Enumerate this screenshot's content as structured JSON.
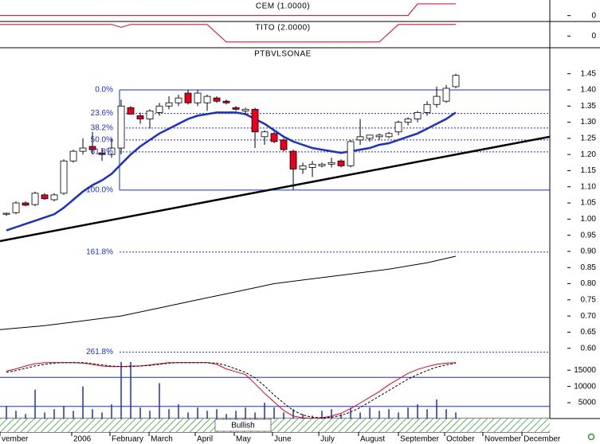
{
  "chart_data": [
    {
      "type": "candlestick",
      "title": "PTBVLSONAE",
      "signal_label": "Bullish",
      "up_color": "#ffffff",
      "down_color": "#e8001c",
      "x": [
        0,
        1,
        2,
        3,
        4,
        5,
        6,
        7,
        8,
        9,
        10,
        11,
        12,
        13,
        14,
        15,
        16,
        17,
        18,
        19,
        20,
        21,
        22,
        23,
        24,
        25,
        26,
        27,
        28,
        29,
        30,
        31,
        32,
        33,
        34,
        35,
        36,
        37,
        38,
        39,
        40,
        41,
        42,
        43,
        44,
        45,
        46,
        47
      ],
      "open": [
        1.015,
        1.02,
        1.05,
        1.045,
        1.075,
        1.06,
        1.08,
        1.18,
        1.21,
        1.225,
        1.205,
        1.2,
        1.22,
        1.345,
        1.32,
        1.31,
        1.33,
        1.35,
        1.36,
        1.39,
        1.36,
        1.36,
        1.375,
        1.365,
        1.345,
        1.335,
        1.34,
        1.255,
        1.265,
        1.245,
        1.21,
        1.155,
        1.16,
        1.165,
        1.17,
        1.18,
        1.165,
        1.245,
        1.25,
        1.255,
        1.255,
        1.27,
        1.3,
        1.31,
        1.33,
        1.355,
        1.365,
        1.41
      ],
      "high": [
        1.02,
        1.055,
        1.055,
        1.085,
        1.08,
        1.08,
        1.185,
        1.215,
        1.25,
        1.27,
        1.22,
        1.25,
        1.37,
        1.35,
        1.33,
        1.34,
        1.36,
        1.38,
        1.385,
        1.4,
        1.4,
        1.385,
        1.38,
        1.37,
        1.35,
        1.345,
        1.345,
        1.275,
        1.27,
        1.25,
        1.215,
        1.175,
        1.18,
        1.175,
        1.19,
        1.185,
        1.245,
        1.31,
        1.26,
        1.265,
        1.27,
        1.305,
        1.315,
        1.335,
        1.365,
        1.41,
        1.415,
        1.45
      ],
      "low": [
        1.01,
        1.015,
        1.04,
        1.04,
        1.06,
        1.055,
        1.075,
        1.175,
        1.2,
        1.2,
        1.18,
        1.19,
        1.2,
        1.325,
        1.295,
        1.28,
        1.32,
        1.34,
        1.35,
        1.355,
        1.35,
        1.335,
        1.36,
        1.355,
        1.335,
        1.325,
        1.22,
        1.23,
        1.235,
        1.21,
        1.09,
        1.14,
        1.13,
        1.16,
        1.16,
        1.16,
        1.16,
        1.23,
        1.24,
        1.245,
        1.25,
        1.26,
        1.29,
        1.3,
        1.32,
        1.345,
        1.36,
        1.405
      ],
      "close": [
        1.018,
        1.05,
        1.043,
        1.08,
        1.063,
        1.075,
        1.18,
        1.21,
        1.22,
        1.215,
        1.2,
        1.22,
        1.35,
        1.325,
        1.31,
        1.335,
        1.35,
        1.36,
        1.375,
        1.36,
        1.39,
        1.38,
        1.365,
        1.36,
        1.34,
        1.34,
        1.27,
        1.27,
        1.24,
        1.215,
        1.155,
        1.165,
        1.17,
        1.17,
        1.175,
        1.165,
        1.24,
        1.255,
        1.26,
        1.26,
        1.265,
        1.3,
        1.31,
        1.33,
        1.355,
        1.38,
        1.405,
        1.445
      ],
      "xlim": [
        -0.67,
        56.83
      ],
      "xticks": [
        {
          "value": -0.67,
          "label": "vember"
        },
        {
          "value": 6.83,
          "label": "2006"
        },
        {
          "value": 10.83,
          "label": "February"
        },
        {
          "value": 14.92,
          "label": "March"
        },
        {
          "value": 19.75,
          "label": "April"
        },
        {
          "value": 23.83,
          "label": "May"
        },
        {
          "value": 27.83,
          "label": "June"
        },
        {
          "value": 32.67,
          "label": "July"
        },
        {
          "value": 36.83,
          "label": "August"
        },
        {
          "value": 41,
          "label": "September"
        },
        {
          "value": 45.83,
          "label": "October"
        },
        {
          "value": 49.83,
          "label": "November"
        },
        {
          "value": 53.92,
          "label": "December"
        }
      ],
      "ylim": [
        0.385,
        1.5305
      ],
      "yticks": [
        1.45,
        {
          "value": 1.4,
          "label": "1.40"
        },
        1.35,
        {
          "value": 1.3,
          "label": "1.30"
        },
        1.25,
        {
          "value": 1.2,
          "label": "1.20"
        },
        1.15,
        {
          "value": 1.1,
          "label": "1.10"
        },
        1.05,
        {
          "value": 1,
          "label": "1.00"
        },
        0.95,
        {
          "value": 0.9,
          "label": "0.90"
        },
        0.85,
        {
          "value": 0.8,
          "label": "0.80"
        },
        0.75,
        {
          "value": 0.7,
          "label": "0.70"
        },
        0.65,
        {
          "value": 0.6,
          "label": "0.60"
        }
      ],
      "overlays": [
        {
          "color": "#1a2fd0",
          "width": 2.5,
          "x": [
            0,
            1,
            2,
            3,
            4,
            5,
            6,
            7,
            8,
            9,
            10,
            11,
            12,
            13,
            14,
            15,
            16,
            17,
            18,
            19,
            20,
            21,
            22,
            23,
            24,
            25,
            26,
            27,
            28,
            29,
            30,
            31,
            32,
            33,
            34,
            35,
            36,
            37,
            38,
            39,
            40,
            41,
            42,
            43,
            44,
            45,
            46,
            47
          ],
          "values": [
            0.965,
            0.975,
            0.985,
            0.995,
            1.005,
            1.015,
            1.035,
            1.06,
            1.085,
            1.105,
            1.12,
            1.14,
            1.17,
            1.2,
            1.225,
            1.245,
            1.265,
            1.28,
            1.295,
            1.31,
            1.32,
            1.325,
            1.33,
            1.33,
            1.33,
            1.325,
            1.31,
            1.295,
            1.275,
            1.255,
            1.24,
            1.23,
            1.22,
            1.215,
            1.21,
            1.205,
            1.21,
            1.215,
            1.22,
            1.23,
            1.235,
            1.245,
            1.255,
            1.265,
            1.28,
            1.295,
            1.31,
            1.33
          ]
        },
        {
          "color": "#000000",
          "width": 1,
          "x": [
            -0.67,
            4,
            8,
            12,
            16,
            20,
            24,
            28,
            32,
            36,
            40,
            44,
            47
          ],
          "values": [
            0.658,
            0.67,
            0.685,
            0.7,
            0.725,
            0.75,
            0.775,
            0.8,
            0.815,
            0.83,
            0.845,
            0.865,
            0.885
          ]
        },
        {
          "color": "#000000",
          "width": 2.5,
          "x": [
            -0.67,
            56.83
          ],
          "values": [
            0.932,
            1.255
          ]
        }
      ],
      "fibonacci": {
        "color": "#1a2fd0",
        "x_start": 11.83,
        "levels": [
          {
            "value": 1.4,
            "label": "0.0%",
            "style": "solid"
          },
          {
            "value": 1.327,
            "label": "23.6%",
            "style": "dashed"
          },
          {
            "value": 1.282,
            "label": "38.2%",
            "style": "dashed"
          },
          {
            "value": 1.245,
            "label": "50.0%",
            "style": "dashed"
          },
          {
            "value": 1.208,
            "label": "61.8%",
            "style": "dashed"
          },
          {
            "value": 1.09,
            "label": "100.0%",
            "style": "solid"
          },
          {
            "value": 0.898,
            "label": "161.8%",
            "style": "dashed"
          },
          {
            "value": 0.588,
            "label": "261.8%",
            "style": "dashed"
          }
        ]
      }
    },
    {
      "type": "line",
      "title": "CEM (1.0000)",
      "xlim": [
        -0.67,
        56.83
      ],
      "ylim": [
        -0.5,
        1.2
      ],
      "yticks": [
        0
      ],
      "series": [
        {
          "color": "#e8001c",
          "x": [
            -0.67,
            42,
            43,
            47
          ],
          "values": [
            0,
            0,
            1,
            1
          ]
        }
      ]
    },
    {
      "type": "line",
      "title": "TITO (2.0000)",
      "xlim": [
        -0.67,
        56.83
      ],
      "ylim": [
        -2,
        2.5
      ],
      "yticks": [
        0
      ],
      "series": [
        {
          "color": "#e8001c",
          "x": [
            -0.67,
            11,
            12,
            13,
            21,
            22,
            23,
            39,
            40,
            41,
            47
          ],
          "values": [
            2,
            2,
            1.5,
            2,
            2,
            0.5,
            -1,
            -1,
            0.5,
            2,
            2
          ]
        }
      ]
    },
    {
      "type": "bar",
      "color": "#1a2fd0",
      "xlim": [
        -0.67,
        56.83
      ],
      "ylim": [
        0,
        17500
      ],
      "yticks": [
        5000,
        10000,
        15000
      ],
      "x": [
        0,
        1,
        2,
        3,
        4,
        5,
        6,
        7,
        8,
        9,
        10,
        11,
        12,
        13,
        14,
        15,
        16,
        17,
        18,
        19,
        20,
        21,
        22,
        23,
        24,
        25,
        26,
        27,
        28,
        29,
        30,
        31,
        32,
        33,
        34,
        35,
        36,
        37,
        38,
        39,
        40,
        41,
        42,
        43,
        44,
        45,
        46,
        47
      ],
      "values": [
        4000,
        2500,
        1500,
        9000,
        2000,
        3000,
        4000,
        2500,
        10000,
        3000,
        2000,
        4500,
        17500,
        17500,
        3500,
        2500,
        11000,
        3000,
        4500,
        2000,
        3500,
        2500,
        3000,
        1500,
        2500,
        3500,
        2000,
        5000,
        3500,
        2000,
        3000,
        1500,
        1000,
        2500,
        3000,
        1500,
        3500,
        2000,
        3500,
        2500,
        3000,
        2000,
        3500,
        4500,
        3000,
        6000,
        3000,
        2000
      ]
    },
    {
      "type": "line",
      "xlim": [
        -0.67,
        56.83
      ],
      "ylim": [
        0,
        100
      ],
      "levels": [
        73,
        22
      ],
      "level_color": "#1a2fd0",
      "series": [
        {
          "color": "#e8001c",
          "x": [
            0,
            1,
            2,
            3,
            4,
            5,
            6,
            7,
            8,
            9,
            10,
            11,
            12,
            13,
            14,
            15,
            16,
            17,
            18,
            19,
            20,
            21,
            22,
            23,
            24,
            25,
            26,
            27,
            28,
            29,
            30,
            31,
            32,
            33,
            34,
            35,
            36,
            37,
            38,
            39,
            40,
            41,
            42,
            43,
            44,
            45,
            46,
            47
          ],
          "values": [
            84,
            88,
            93,
            97,
            99,
            99,
            99,
            99,
            98,
            96,
            93,
            92,
            92,
            93,
            93,
            95,
            97,
            99,
            99,
            99,
            99,
            99,
            96,
            88,
            83,
            78,
            62,
            45,
            30,
            15,
            5,
            2,
            1,
            2,
            5,
            10,
            18,
            28,
            38,
            48,
            60,
            70,
            80,
            87,
            92,
            96,
            98,
            99
          ]
        },
        {
          "color": "#000000",
          "dashed": true,
          "x": [
            0,
            1,
            2,
            3,
            4,
            5,
            6,
            7,
            8,
            9,
            10,
            11,
            12,
            13,
            14,
            15,
            16,
            17,
            18,
            19,
            20,
            21,
            22,
            23,
            24,
            25,
            26,
            27,
            28,
            29,
            30,
            31,
            32,
            33,
            34,
            35,
            36,
            37,
            38,
            39,
            40,
            41,
            42,
            43,
            44,
            45,
            46,
            47
          ],
          "values": [
            82,
            85,
            89,
            93,
            96,
            98,
            99,
            99,
            99,
            97,
            95,
            93,
            92,
            92,
            93,
            94,
            96,
            98,
            99,
            99,
            99,
            99,
            98,
            94,
            88,
            82,
            72,
            58,
            42,
            28,
            15,
            7,
            3,
            2,
            3,
            6,
            12,
            20,
            30,
            40,
            50,
            60,
            70,
            78,
            85,
            91,
            95,
            98
          ]
        }
      ]
    }
  ]
}
